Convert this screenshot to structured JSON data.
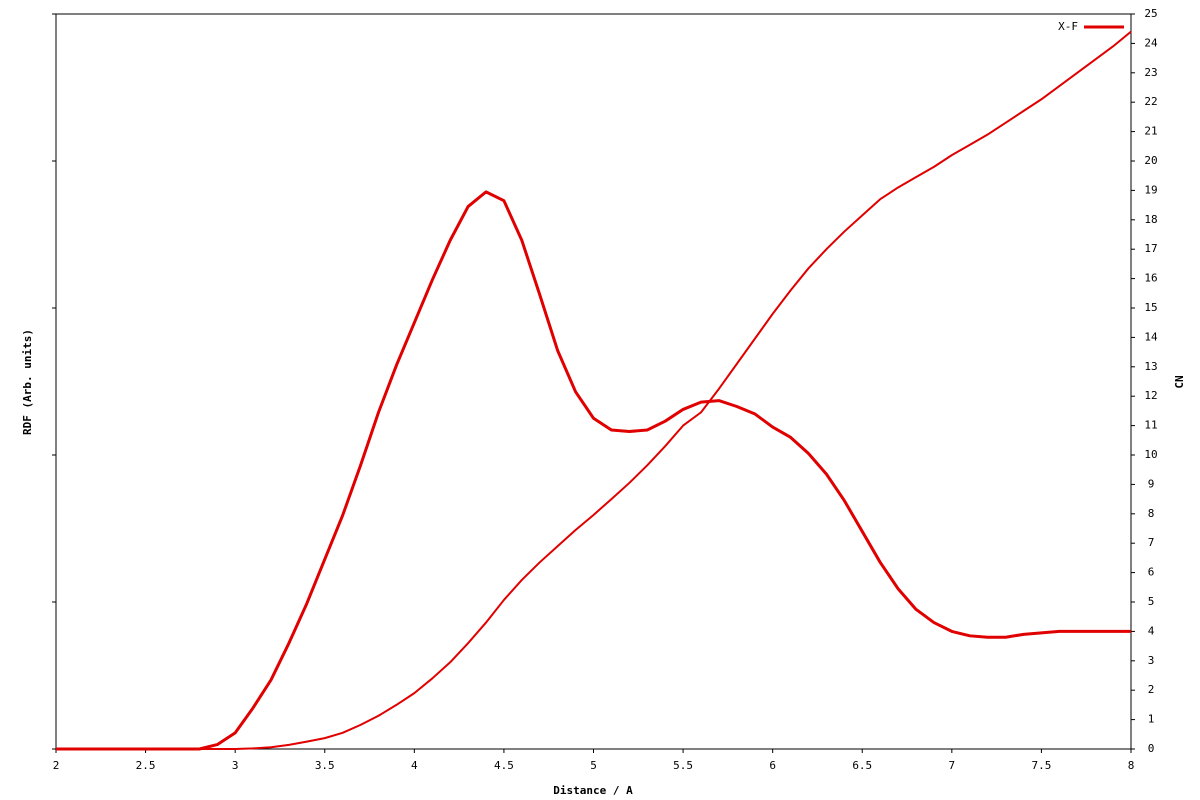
{
  "chart_data": {
    "type": "line",
    "xlabel": "Distance / A",
    "ylabel": "RDF (Arb. units)",
    "y2label": "CN",
    "x": [
      2.0,
      2.1,
      2.2,
      2.3,
      2.4,
      2.5,
      2.6,
      2.7,
      2.8,
      2.9,
      3.0,
      3.1,
      3.2,
      3.3,
      3.4,
      3.5,
      3.6,
      3.7,
      3.8,
      3.9,
      4.0,
      4.1,
      4.2,
      4.3,
      4.4,
      4.5,
      4.6,
      4.7,
      4.8,
      4.9,
      5.0,
      5.1,
      5.2,
      5.3,
      5.4,
      5.5,
      5.6,
      5.7,
      5.8,
      5.9,
      6.0,
      6.1,
      6.2,
      6.3,
      6.4,
      6.5,
      6.6,
      6.7,
      6.8,
      6.9,
      7.0,
      7.1,
      7.2,
      7.3,
      7.4,
      7.5,
      7.6,
      7.7,
      7.8,
      7.9,
      8.0
    ],
    "series": [
      {
        "name": "X-F",
        "color": "#e00000",
        "axis": "y",
        "values": [
          0,
          0,
          0,
          0,
          0,
          0,
          0,
          0,
          0,
          0.03,
          0.11,
          0.28,
          0.47,
          0.72,
          0.99,
          1.29,
          1.59,
          1.93,
          2.29,
          2.61,
          2.9,
          3.19,
          3.46,
          3.69,
          3.79,
          3.73,
          3.46,
          3.09,
          2.71,
          2.43,
          2.25,
          2.17,
          2.16,
          2.17,
          2.23,
          2.31,
          2.36,
          2.37,
          2.33,
          2.28,
          2.19,
          2.12,
          2.01,
          1.87,
          1.69,
          1.48,
          1.27,
          1.09,
          0.95,
          0.86,
          0.8,
          0.77,
          0.76,
          0.76,
          0.78,
          0.79,
          0.8,
          0.8,
          0.8,
          0.8,
          0.8
        ]
      },
      {
        "color": "#e00000",
        "axis": "y2",
        "values": [
          0,
          0,
          0,
          0,
          0,
          0,
          0,
          0,
          0,
          0,
          0,
          0.02,
          0.06,
          0.14,
          0.25,
          0.37,
          0.55,
          0.82,
          1.13,
          1.5,
          1.9,
          2.4,
          2.95,
          3.6,
          4.3,
          5.07,
          5.75,
          6.35,
          6.9,
          7.45,
          7.96,
          8.5,
          9.05,
          9.65,
          10.3,
          11.0,
          11.45,
          12.25,
          13.1,
          13.95,
          14.8,
          15.6,
          16.35,
          17.0,
          17.6,
          18.15,
          18.7,
          19.1,
          19.45,
          19.8,
          20.2,
          20.55,
          20.9,
          21.3,
          21.7,
          22.1,
          22.55,
          23.0,
          23.45,
          23.9,
          24.4
        ]
      }
    ],
    "xlim": [
      2,
      8
    ],
    "xticks": [
      2,
      2.5,
      3,
      3.5,
      4,
      4.5,
      5,
      5.5,
      6,
      6.5,
      7,
      7.5,
      8
    ],
    "ylim": [
      0,
      5
    ],
    "yticks": [
      0,
      1,
      2,
      3,
      4,
      5
    ],
    "ytick_labels": false,
    "y2lim": [
      0,
      25
    ],
    "y2ticks": [
      0,
      1,
      2,
      3,
      4,
      5,
      6,
      7,
      8,
      9,
      10,
      11,
      12,
      13,
      14,
      15,
      16,
      17,
      18,
      19,
      20,
      21,
      22,
      23,
      24,
      25
    ],
    "legend": "top-right",
    "grid": false
  }
}
